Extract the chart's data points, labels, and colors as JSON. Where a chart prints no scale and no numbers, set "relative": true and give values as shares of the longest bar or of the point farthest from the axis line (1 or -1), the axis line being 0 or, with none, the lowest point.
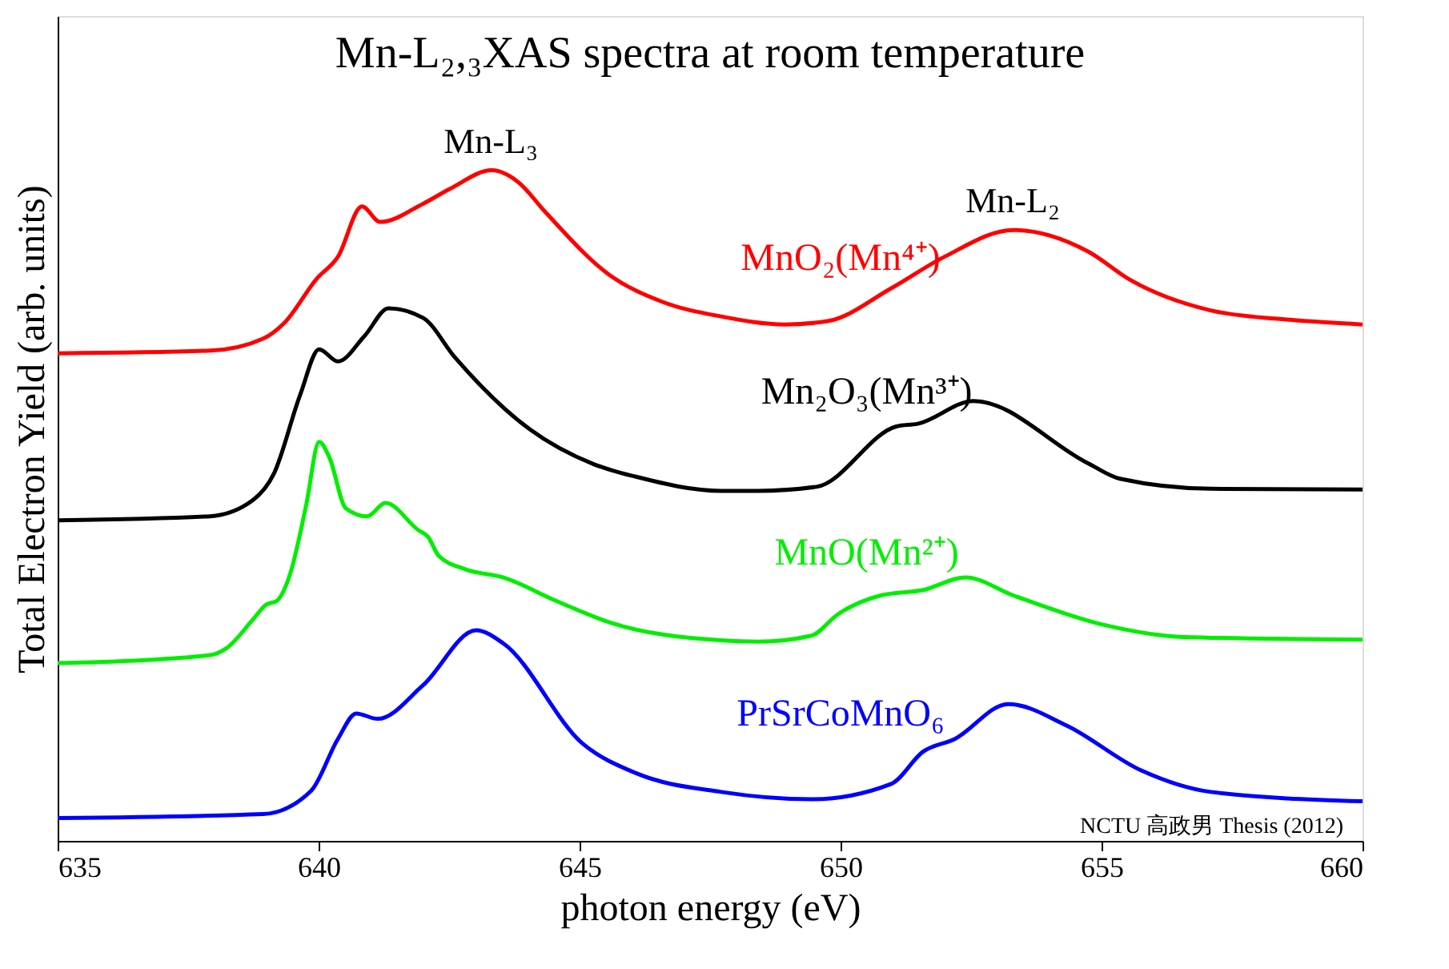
{
  "chart_data": {
    "type": "line",
    "title": "Mn-L₂,₃XAS spectra at room temperature",
    "xlabel": "photon energy (eV)",
    "ylabel": "Total Electron Yield (arb. units)",
    "relative": true,
    "xlim": [
      635,
      660
    ],
    "xticks": [
      635,
      640,
      645,
      650,
      655,
      660
    ],
    "tick_labels": "x",
    "grid": false,
    "marker": "none",
    "line_style": "solid",
    "series": [
      {
        "name": "MnO₂(Mn⁴⁺)",
        "color": "#ff0000",
        "x": [
          635.0,
          637.92,
          638.94,
          639.35,
          639.96,
          640.37,
          640.83,
          641.18,
          642.0,
          642.51,
          643.32,
          643.83,
          644.34,
          645.57,
          646.58,
          647.71,
          648.93,
          649.75,
          650.97,
          651.99,
          653.31,
          654.74,
          655.56,
          657.09,
          658.61,
          660.0
        ],
        "values": [
          0.727,
          0.731,
          0.749,
          0.773,
          0.838,
          0.871,
          0.946,
          0.923,
          0.95,
          0.972,
          1.0,
          0.982,
          0.938,
          0.844,
          0.804,
          0.782,
          0.77,
          0.775,
          0.824,
          0.871,
          0.911,
          0.879,
          0.836,
          0.791,
          0.777,
          0.77
        ]
      },
      {
        "name": "Mn₂O₃(Mn³⁺)",
        "color": "#000000",
        "x": [
          635.0,
          637.92,
          638.74,
          639.14,
          639.65,
          640.01,
          640.37,
          640.88,
          641.34,
          642.0,
          642.61,
          644.04,
          645.26,
          646.08,
          647.71,
          648.42,
          649.54,
          651.07,
          651.48,
          652.55,
          654.74,
          655.35,
          657.09,
          660.0
        ],
        "values": [
          0.478,
          0.484,
          0.508,
          0.547,
          0.666,
          0.733,
          0.715,
          0.753,
          0.794,
          0.78,
          0.721,
          0.614,
          0.562,
          0.543,
          0.522,
          0.522,
          0.528,
          0.618,
          0.622,
          0.656,
          0.563,
          0.54,
          0.525,
          0.524
        ]
      },
      {
        "name": "MnO(Mn²⁺)",
        "color": "#00ee00",
        "x": [
          635.0,
          637.92,
          638.23,
          638.74,
          638.99,
          639.2,
          639.45,
          639.76,
          640.01,
          640.21,
          640.52,
          640.93,
          641.28,
          641.9,
          642.1,
          642.3,
          642.81,
          643.53,
          644.55,
          645.57,
          647.71,
          648.42,
          649.44,
          649.95,
          650.77,
          651.58,
          652.39,
          653.31,
          655.05,
          656.58,
          660.0
        ],
        "values": [
          0.265,
          0.277,
          0.287,
          0.33,
          0.352,
          0.358,
          0.397,
          0.5,
          0.595,
          0.571,
          0.496,
          0.484,
          0.504,
          0.464,
          0.453,
          0.425,
          0.405,
          0.393,
          0.358,
          0.326,
          0.299,
          0.297,
          0.306,
          0.338,
          0.366,
          0.374,
          0.393,
          0.366,
          0.322,
          0.304,
          0.3
        ]
      },
      {
        "name": "PrSrCoMnO₆",
        "color": "#0000ff",
        "x": [
          635.0,
          638.94,
          639.86,
          640.37,
          640.72,
          641.13,
          642.0,
          643.02,
          643.53,
          645.06,
          646.08,
          647.71,
          649.44,
          650.97,
          651.58,
          652.19,
          653.21,
          654.33,
          655.76,
          657.09,
          660.0
        ],
        "values": [
          0.034,
          0.04,
          0.075,
          0.152,
          0.19,
          0.182,
          0.232,
          0.314,
          0.295,
          0.145,
          0.101,
          0.073,
          0.062,
          0.085,
          0.133,
          0.152,
          0.204,
          0.172,
          0.105,
          0.073,
          0.059
        ]
      }
    ],
    "annotations": [
      {
        "text": "Mn-L₃",
        "x": 643.3,
        "y": 1.0
      },
      {
        "text": "Mn-L₂",
        "x": 653.3,
        "y": 0.911
      },
      "NCTU 高政男 Thesis (2012)"
    ]
  }
}
